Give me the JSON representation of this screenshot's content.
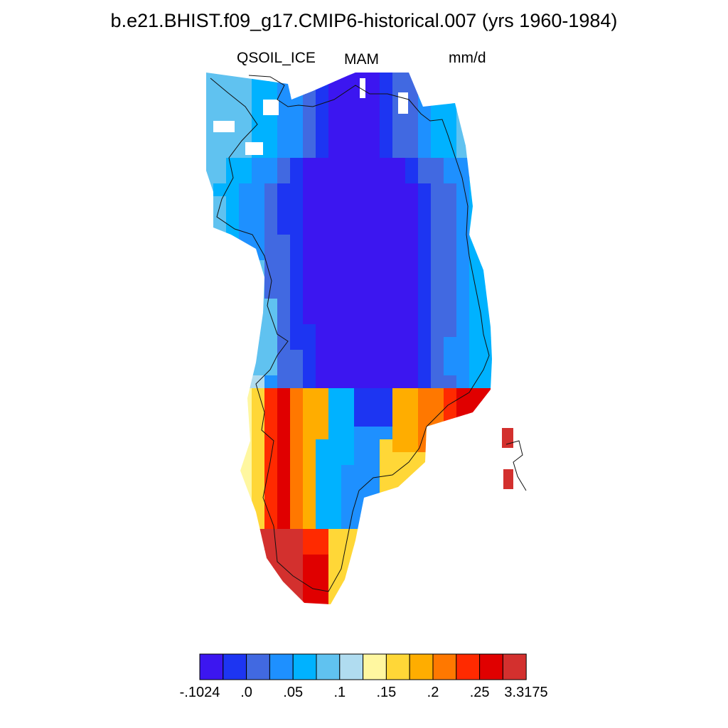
{
  "title": "b.e21.BHIST.f09_g17.CMIP6-historical.007 (yrs 1960-1984)",
  "variable": "QSOIL_ICE",
  "season": "MAM",
  "units": "mm/d",
  "colorbar": {
    "colors": [
      "#3c16f0",
      "#1d35f2",
      "#4169e1",
      "#1e90ff",
      "#00b2ff",
      "#60c2f0",
      "#b0dcf0",
      "#fff7a0",
      "#ffd737",
      "#ffad00",
      "#ff7800",
      "#ff2a00",
      "#e00000",
      "#d3302e"
    ],
    "labels": [
      "-.1024",
      ".0",
      ".05",
      ".1",
      ".15",
      ".2",
      ".25",
      "3.3175"
    ]
  },
  "map": {
    "region": "Greenland",
    "field": "QSOIL_ICE",
    "projection": "polar stereographic",
    "coastline": "black thin line"
  }
}
